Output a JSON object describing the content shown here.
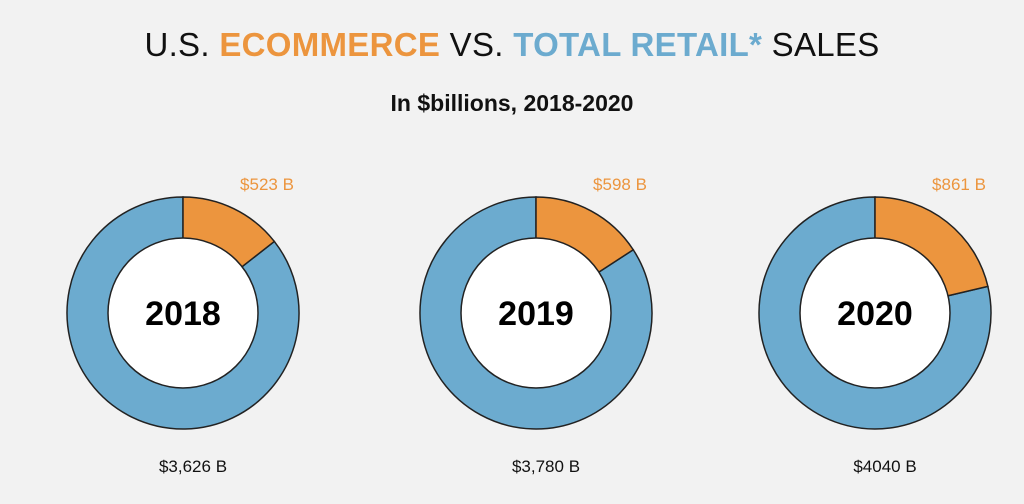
{
  "title": {
    "prefix": "U.S. ",
    "ecommerce": "ECOMMERCE",
    "vs": " VS. ",
    "total_retail": "TOTAL RETAIL*",
    "suffix": " SALES"
  },
  "subtitle": "In $billions, 2018-2020",
  "colors": {
    "ecommerce": "#ec953e",
    "total_retail": "#6cabcf",
    "background": "#f2f2f2"
  },
  "chart_data": [
    {
      "type": "pie",
      "year": "2018",
      "ecommerce_value": 523,
      "ecommerce_label": "$523 B",
      "total_value": 3626,
      "total_label": "$3,626 B"
    },
    {
      "type": "pie",
      "year": "2019",
      "ecommerce_value": 598,
      "ecommerce_label": "$598 B",
      "total_value": 3780,
      "total_label": "$3,780 B"
    },
    {
      "type": "pie",
      "year": "2020",
      "ecommerce_value": 861,
      "ecommerce_label": "$861 B",
      "total_value": 4040,
      "total_label": "$4040 B"
    }
  ]
}
